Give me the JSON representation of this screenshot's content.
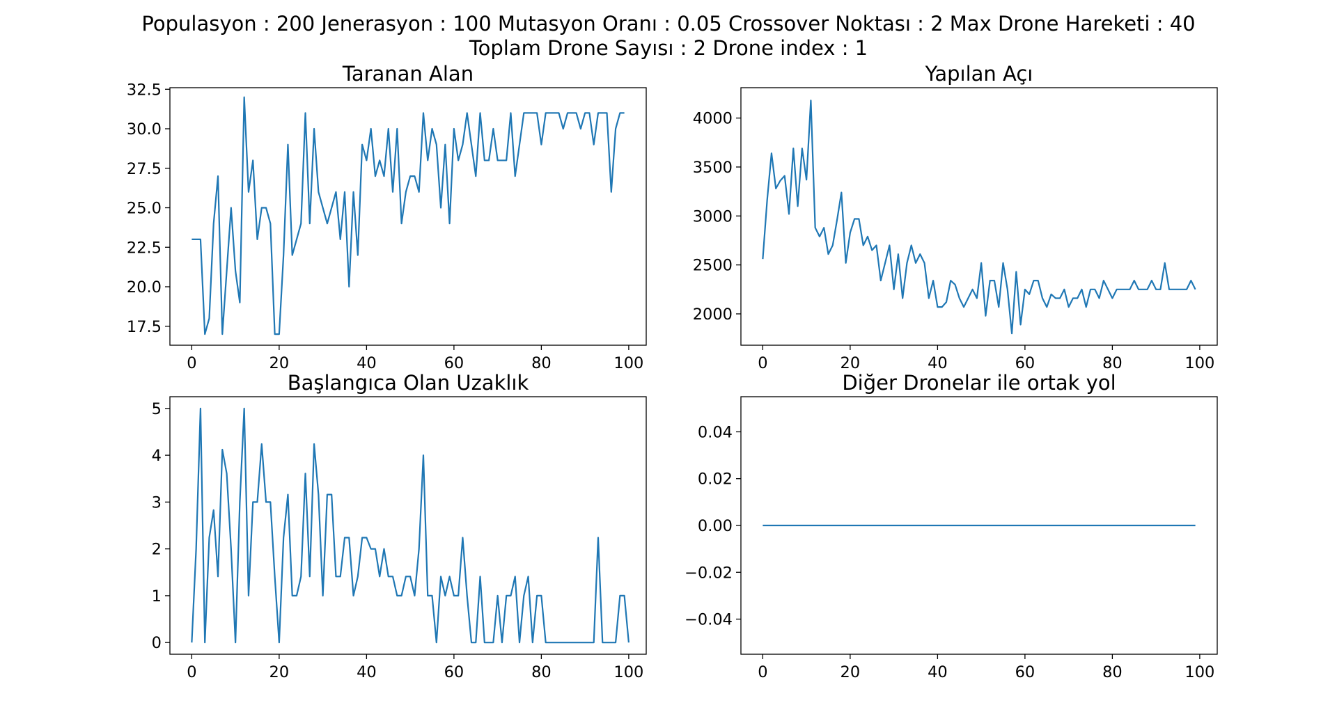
{
  "figure": {
    "suptitle_line1": "Populasyon : 200 Jenerasyon : 100 Mutasyon Oranı : 0.05 Crossover Noktası : 2 Max Drone Hareketi : 40",
    "suptitle_line2": "Toplam Drone Sayısı : 2 Drone index : 1"
  },
  "colors": {
    "line": "#1f77b4",
    "axis": "#000000",
    "background": "#ffffff"
  },
  "chart_data": [
    {
      "type": "line",
      "title": "Taranan Alan",
      "xlim": [
        -5,
        104
      ],
      "ylim": [
        16.3,
        32.6
      ],
      "xticks": [
        0,
        20,
        40,
        60,
        80,
        100
      ],
      "yticks": [
        17.5,
        20.0,
        22.5,
        25.0,
        27.5,
        30.0,
        32.5
      ],
      "ytick_labels": [
        "17.5",
        "20.0",
        "22.5",
        "25.0",
        "27.5",
        "30.0",
        "32.5"
      ],
      "grid": false,
      "x_start": 0,
      "y": [
        23,
        23,
        23,
        17,
        18,
        24,
        27,
        17,
        21,
        25,
        21,
        19,
        32,
        26,
        28,
        23,
        25,
        25,
        24,
        17,
        17,
        22,
        29,
        22,
        23,
        24,
        31,
        24,
        30,
        26,
        25,
        24,
        25,
        26,
        23,
        26,
        20,
        26,
        22,
        29,
        28,
        30,
        27,
        28,
        27,
        30,
        26,
        30,
        24,
        26,
        27,
        27,
        26,
        31,
        28,
        30,
        29,
        25,
        29,
        24,
        30,
        28,
        29,
        31,
        29,
        27,
        31,
        28,
        28,
        30,
        28,
        28,
        28,
        31,
        27,
        29,
        31,
        31,
        31,
        31,
        29,
        31,
        31,
        31,
        31,
        30,
        31,
        31,
        31,
        30,
        31,
        31,
        29,
        31,
        31,
        31,
        26,
        30,
        31,
        31
      ]
    },
    {
      "type": "line",
      "title": "Yapılan Açı",
      "xlim": [
        -5,
        104
      ],
      "ylim": [
        1680,
        4310
      ],
      "xticks": [
        0,
        20,
        40,
        60,
        80,
        100
      ],
      "yticks": [
        2000,
        2500,
        3000,
        3500,
        4000
      ],
      "ytick_labels": [
        "2000",
        "2500",
        "3000",
        "3500",
        "4000"
      ],
      "grid": false,
      "x_start": 0,
      "y": [
        2560,
        3160,
        3640,
        3280,
        3360,
        3410,
        3020,
        3690,
        3100,
        3690,
        3370,
        4180,
        2880,
        2790,
        2880,
        2610,
        2700,
        2960,
        3240,
        2520,
        2830,
        2970,
        2970,
        2700,
        2790,
        2650,
        2700,
        2340,
        2520,
        2700,
        2250,
        2610,
        2160,
        2520,
        2700,
        2520,
        2610,
        2520,
        2160,
        2340,
        2070,
        2070,
        2120,
        2340,
        2300,
        2160,
        2070,
        2160,
        2250,
        2160,
        2520,
        1980,
        2340,
        2340,
        2070,
        2520,
        2250,
        1800,
        2430,
        1890,
        2250,
        2200,
        2340,
        2340,
        2160,
        2070,
        2200,
        2160,
        2160,
        2250,
        2070,
        2160,
        2160,
        2250,
        2070,
        2250,
        2250,
        2160,
        2340,
        2250,
        2160,
        2250,
        2250,
        2250,
        2250,
        2340,
        2250,
        2250,
        2250,
        2340,
        2250,
        2250,
        2520,
        2250,
        2250,
        2250,
        2250,
        2250,
        2340,
        2250
      ]
    },
    {
      "type": "line",
      "title": "Başlangıca Olan Uzaklık",
      "xlim": [
        -5,
        104
      ],
      "ylim": [
        -0.25,
        5.25
      ],
      "xticks": [
        0,
        20,
        40,
        60,
        80,
        100
      ],
      "yticks": [
        0,
        1,
        2,
        3,
        4,
        5
      ],
      "ytick_labels": [
        "0",
        "1",
        "2",
        "3",
        "4",
        "5"
      ],
      "grid": false,
      "x_start": 0,
      "y": [
        0,
        2,
        5,
        0,
        2.24,
        2.83,
        1.41,
        4.12,
        3.61,
        2,
        0,
        3,
        5,
        1,
        3,
        3,
        4.24,
        3,
        3,
        1.41,
        0,
        2.24,
        3.16,
        1,
        1,
        1.41,
        3.61,
        1.41,
        4.24,
        3.16,
        1,
        3.16,
        3.16,
        1.41,
        1.41,
        2.24,
        2.24,
        1,
        1.41,
        2.24,
        2.24,
        2,
        2,
        1.41,
        2,
        1.41,
        1.41,
        1,
        1,
        1.41,
        1.41,
        1,
        2,
        4,
        1,
        1,
        0,
        1.41,
        1,
        1.41,
        1,
        1,
        2.24,
        1,
        0,
        0,
        1.41,
        0,
        0,
        0,
        1,
        0,
        1,
        1,
        1.41,
        0,
        1,
        1.41,
        0,
        1,
        1,
        0,
        0,
        0,
        0,
        0,
        0,
        0,
        0,
        0,
        0,
        0,
        0,
        2.24,
        0,
        0,
        0,
        0,
        1,
        1,
        0
      ]
    },
    {
      "type": "line",
      "title": "Diğer Dronelar ile ortak yol",
      "xlim": [
        -5,
        104
      ],
      "ylim": [
        -0.055,
        0.055
      ],
      "xticks": [
        0,
        20,
        40,
        60,
        80,
        100
      ],
      "yticks": [
        -0.04,
        -0.02,
        0.0,
        0.02,
        0.04
      ],
      "ytick_labels": [
        "−0.04",
        "−0.02",
        "0.00",
        "0.02",
        "0.04"
      ],
      "grid": false,
      "x_start": 0,
      "y": [
        0,
        0,
        0,
        0,
        0,
        0,
        0,
        0,
        0,
        0,
        0,
        0,
        0,
        0,
        0,
        0,
        0,
        0,
        0,
        0,
        0,
        0,
        0,
        0,
        0,
        0,
        0,
        0,
        0,
        0,
        0,
        0,
        0,
        0,
        0,
        0,
        0,
        0,
        0,
        0,
        0,
        0,
        0,
        0,
        0,
        0,
        0,
        0,
        0,
        0,
        0,
        0,
        0,
        0,
        0,
        0,
        0,
        0,
        0,
        0,
        0,
        0,
        0,
        0,
        0,
        0,
        0,
        0,
        0,
        0,
        0,
        0,
        0,
        0,
        0,
        0,
        0,
        0,
        0,
        0,
        0,
        0,
        0,
        0,
        0,
        0,
        0,
        0,
        0,
        0,
        0,
        0,
        0,
        0,
        0,
        0,
        0,
        0,
        0,
        0
      ]
    }
  ]
}
